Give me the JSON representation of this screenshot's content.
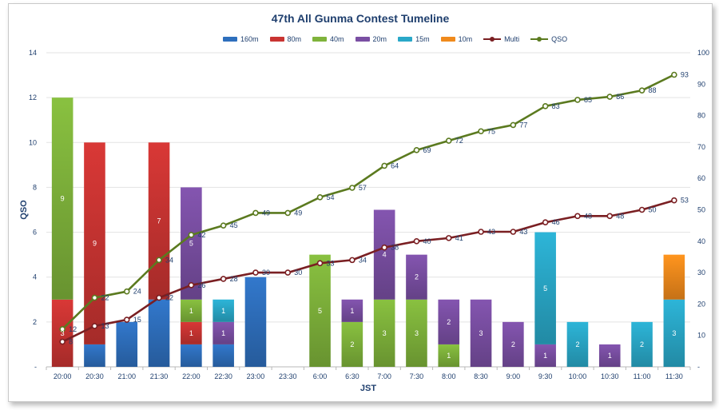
{
  "chart_data": {
    "type": "bar",
    "stacked": true,
    "title": "47th All Gunma Contest Tumeline",
    "xlabel": "JST",
    "ylabel": "QSO",
    "ylim": [
      0,
      14
    ],
    "y2lim": [
      0,
      100
    ],
    "yticks": [
      "-",
      "2",
      "4",
      "6",
      "8",
      "10",
      "12",
      "14"
    ],
    "y2ticks": [
      "-",
      "10",
      "20",
      "30",
      "40",
      "50",
      "60",
      "70",
      "80",
      "90",
      "100"
    ],
    "categories": [
      "20:00",
      "20:30",
      "21:00",
      "21:30",
      "22:00",
      "22:30",
      "23:00",
      "23:30",
      "6:00",
      "6:30",
      "7:00",
      "7:30",
      "8:00",
      "8:30",
      "9:00",
      "9:30",
      "10:00",
      "10:30",
      "11:00",
      "11:30"
    ],
    "series": [
      {
        "name": "160m",
        "color": "#2e6fbd",
        "values": [
          0,
          1,
          2,
          3,
          1,
          1,
          4,
          0,
          0,
          0,
          0,
          0,
          0,
          0,
          0,
          0,
          0,
          0,
          0,
          0
        ],
        "labels": [
          "",
          "",
          "",
          "",
          "",
          "",
          "",
          "",
          "",
          "",
          "",
          "",
          "",
          "",
          "",
          "",
          "",
          "",
          "",
          ""
        ]
      },
      {
        "name": "80m",
        "color": "#c93432",
        "values": [
          3,
          9,
          0,
          7,
          1,
          0,
          0,
          0,
          0,
          0,
          0,
          0,
          0,
          0,
          0,
          0,
          0,
          0,
          0,
          0
        ],
        "labels": [
          "3",
          "9",
          "",
          "7",
          "1",
          "",
          "",
          "",
          "",
          "",
          "",
          "",
          "",
          "",
          "",
          "",
          "",
          "",
          "",
          ""
        ]
      },
      {
        "name": "40m",
        "color": "#7fb33b",
        "values": [
          9,
          0,
          0,
          0,
          1,
          0,
          0,
          0,
          5,
          2,
          3,
          3,
          1,
          0,
          0,
          0,
          0,
          0,
          0,
          0
        ],
        "labels": [
          "9",
          "",
          "",
          "",
          "1",
          "",
          "",
          "",
          "5",
          "2",
          "3",
          "3",
          "1",
          "",
          "",
          "",
          "",
          "",
          "",
          ""
        ]
      },
      {
        "name": "20m",
        "color": "#7a4fa3",
        "values": [
          0,
          0,
          0,
          0,
          5,
          1,
          0,
          0,
          0,
          1,
          4,
          2,
          2,
          3,
          2,
          1,
          0,
          1,
          0,
          0
        ],
        "labels": [
          "",
          "",
          "",
          "",
          "5",
          "1",
          "",
          "",
          "",
          "1",
          "4",
          "2",
          "2",
          "3",
          "2",
          "1",
          "",
          "1",
          "",
          ""
        ]
      },
      {
        "name": "15m",
        "color": "#2aa8c8",
        "values": [
          0,
          0,
          0,
          0,
          0,
          1,
          0,
          0,
          0,
          0,
          0,
          0,
          0,
          0,
          0,
          5,
          2,
          0,
          2,
          3
        ],
        "labels": [
          "",
          "",
          "",
          "",
          "",
          "1",
          "",
          "",
          "",
          "",
          "",
          "",
          "",
          "",
          "",
          "5",
          "2",
          "",
          "2",
          "3"
        ]
      },
      {
        "name": "10m",
        "color": "#f08a1c",
        "values": [
          0,
          0,
          0,
          0,
          0,
          0,
          0,
          0,
          0,
          0,
          0,
          0,
          0,
          0,
          0,
          0,
          0,
          0,
          0,
          2
        ],
        "labels": [
          "",
          "",
          "",
          "",
          "",
          "",
          "",
          "",
          "",
          "",
          "",
          "",
          "",
          "",
          "",
          "",
          "",
          "",
          "",
          ""
        ]
      }
    ],
    "lines": [
      {
        "name": "Multi",
        "axis": "right",
        "color": "#7a1f22",
        "values": [
          8,
          13,
          15,
          22,
          26,
          28,
          30,
          30,
          33,
          34,
          38,
          40,
          41,
          43,
          43,
          46,
          48,
          48,
          50,
          53
        ]
      },
      {
        "name": "QSO",
        "axis": "right",
        "color": "#5b7a1f",
        "values": [
          12,
          22,
          24,
          34,
          42,
          45,
          49,
          49,
          54,
          57,
          64,
          69,
          72,
          75,
          77,
          83,
          85,
          86,
          88,
          93
        ]
      }
    ]
  }
}
